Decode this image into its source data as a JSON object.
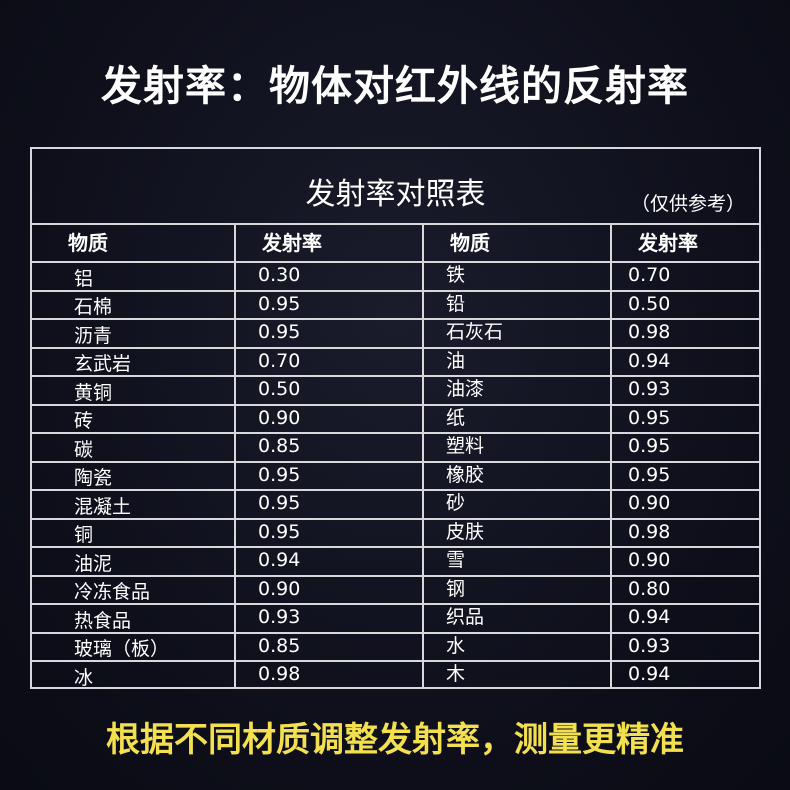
{
  "title": "发射率：物体对红外线的反射率",
  "table": {
    "caption": "发射率对照表",
    "note": "（仅供参考）",
    "headers": [
      "物质",
      "发射率",
      "物质",
      "发射率"
    ],
    "rows": [
      [
        "铝",
        "0.30",
        "铁",
        "0.70"
      ],
      [
        "石棉",
        "0.95",
        "铅",
        "0.50"
      ],
      [
        "沥青",
        "0.95",
        "石灰石",
        "0.98"
      ],
      [
        "玄武岩",
        "0.70",
        "油",
        "0.94"
      ],
      [
        "黄铜",
        "0.50",
        "油漆",
        "0.93"
      ],
      [
        "砖",
        "0.90",
        "纸",
        "0.95"
      ],
      [
        "碳",
        "0.85",
        "塑料",
        "0.95"
      ],
      [
        "陶瓷",
        "0.95",
        "橡胶",
        "0.95"
      ],
      [
        "混凝土",
        "0.95",
        "砂",
        "0.90"
      ],
      [
        "铜",
        "0.95",
        "皮肤",
        "0.98"
      ],
      [
        "油泥",
        "0.94",
        "雪",
        "0.90"
      ],
      [
        "冷冻食品",
        "0.90",
        "钢",
        "0.80"
      ],
      [
        " 热食品",
        "0.93",
        "织品",
        "0.94"
      ],
      [
        "玻璃（板）",
        "0.85",
        "水",
        "0.93"
      ],
      [
        "冰",
        "0.98",
        "木",
        "0.94"
      ]
    ]
  },
  "footer": "根据不同材质调整发射率，测量更精准",
  "colors": {
    "background": "#0d0e19",
    "footer_text": "#f3e04e",
    "grid": "#d8d8dc"
  }
}
